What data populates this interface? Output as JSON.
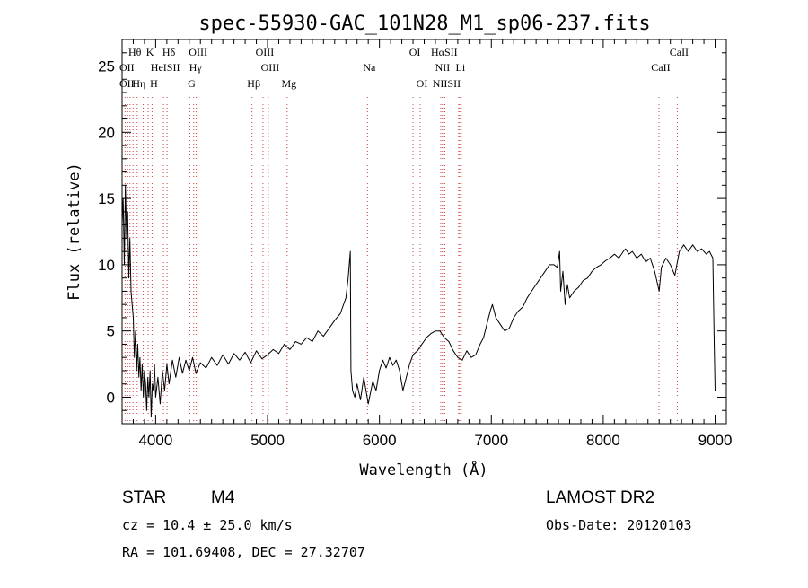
{
  "chart_data": {
    "type": "line",
    "title": "spec-55930-GAC_101N28_M1_sp06-237.fits",
    "xlabel": "Wavelength (Å)",
    "ylabel": "Flux (relative)",
    "xlim": [
      3700,
      9100
    ],
    "ylim": [
      -2,
      27
    ],
    "xticks": [
      4000,
      5000,
      6000,
      7000,
      8000,
      9000
    ],
    "yticks": [
      0,
      5,
      10,
      15,
      20,
      25
    ],
    "grid": false,
    "series": [
      {
        "values": [
          [
            3700,
            13
          ],
          [
            3710,
            15
          ],
          [
            3720,
            10
          ],
          [
            3730,
            16
          ],
          [
            3740,
            12
          ],
          [
            3750,
            14
          ],
          [
            3760,
            9
          ],
          [
            3770,
            12
          ],
          [
            3780,
            8
          ],
          [
            3790,
            7
          ],
          [
            3800,
            6
          ],
          [
            3810,
            3
          ],
          [
            3820,
            5
          ],
          [
            3830,
            2
          ],
          [
            3840,
            4
          ],
          [
            3850,
            1.5
          ],
          [
            3860,
            3
          ],
          [
            3870,
            0.5
          ],
          [
            3880,
            2.5
          ],
          [
            3890,
            0
          ],
          [
            3900,
            2
          ],
          [
            3910,
            1
          ],
          [
            3920,
            -1
          ],
          [
            3930,
            1.5
          ],
          [
            3940,
            0
          ],
          [
            3950,
            2
          ],
          [
            3960,
            -1.5
          ],
          [
            3970,
            1
          ],
          [
            3980,
            0.5
          ],
          [
            3990,
            2.5
          ],
          [
            4000,
            0
          ],
          [
            4020,
            1.5
          ],
          [
            4040,
            -0.5
          ],
          [
            4060,
            2
          ],
          [
            4080,
            0.5
          ],
          [
            4100,
            2.5
          ],
          [
            4120,
            1
          ],
          [
            4150,
            2.8
          ],
          [
            4180,
            1.5
          ],
          [
            4210,
            3
          ],
          [
            4240,
            1.8
          ],
          [
            4270,
            2.8
          ],
          [
            4300,
            2
          ],
          [
            4330,
            3
          ],
          [
            4360,
            1.8
          ],
          [
            4400,
            2.6
          ],
          [
            4450,
            2.2
          ],
          [
            4500,
            3
          ],
          [
            4550,
            2.4
          ],
          [
            4600,
            3.2
          ],
          [
            4650,
            2.5
          ],
          [
            4700,
            3.3
          ],
          [
            4750,
            2.8
          ],
          [
            4800,
            3.4
          ],
          [
            4850,
            2.6
          ],
          [
            4900,
            3.5
          ],
          [
            4950,
            2.9
          ],
          [
            5000,
            3.2
          ],
          [
            5050,
            3.6
          ],
          [
            5100,
            3.3
          ],
          [
            5150,
            4
          ],
          [
            5200,
            3.6
          ],
          [
            5250,
            4.2
          ],
          [
            5300,
            4
          ],
          [
            5350,
            4.5
          ],
          [
            5400,
            4.2
          ],
          [
            5450,
            5
          ],
          [
            5500,
            4.6
          ],
          [
            5550,
            5.2
          ],
          [
            5600,
            5.8
          ],
          [
            5650,
            6.3
          ],
          [
            5700,
            7.5
          ],
          [
            5720,
            9
          ],
          [
            5740,
            11
          ],
          [
            5745,
            2
          ],
          [
            5760,
            0.5
          ],
          [
            5780,
            0
          ],
          [
            5800,
            1
          ],
          [
            5830,
            -0.2
          ],
          [
            5860,
            1.5
          ],
          [
            5900,
            -0.5
          ],
          [
            5940,
            1.2
          ],
          [
            5970,
            0.5
          ],
          [
            6000,
            2
          ],
          [
            6030,
            2.8
          ],
          [
            6060,
            2.2
          ],
          [
            6090,
            3
          ],
          [
            6120,
            2.4
          ],
          [
            6150,
            2.8
          ],
          [
            6180,
            2
          ],
          [
            6210,
            0.5
          ],
          [
            6240,
            1.5
          ],
          [
            6270,
            2.5
          ],
          [
            6300,
            3.2
          ],
          [
            6340,
            3.5
          ],
          [
            6380,
            4
          ],
          [
            6420,
            4.5
          ],
          [
            6460,
            4.8
          ],
          [
            6500,
            5
          ],
          [
            6540,
            5
          ],
          [
            6580,
            4.5
          ],
          [
            6620,
            4.2
          ],
          [
            6660,
            3.5
          ],
          [
            6700,
            3
          ],
          [
            6740,
            2.8
          ],
          [
            6780,
            3.5
          ],
          [
            6820,
            3
          ],
          [
            6860,
            3.2
          ],
          [
            6900,
            4
          ],
          [
            6930,
            4.5
          ],
          [
            6960,
            5.5
          ],
          [
            6990,
            6.5
          ],
          [
            7010,
            7
          ],
          [
            7040,
            6
          ],
          [
            7080,
            5.5
          ],
          [
            7120,
            5
          ],
          [
            7160,
            5.2
          ],
          [
            7200,
            6
          ],
          [
            7240,
            6.5
          ],
          [
            7280,
            6.8
          ],
          [
            7320,
            7.5
          ],
          [
            7360,
            8
          ],
          [
            7400,
            8.5
          ],
          [
            7440,
            9
          ],
          [
            7480,
            9.5
          ],
          [
            7520,
            10
          ],
          [
            7560,
            10
          ],
          [
            7590,
            9.8
          ],
          [
            7610,
            11
          ],
          [
            7620,
            8
          ],
          [
            7640,
            9.5
          ],
          [
            7660,
            7
          ],
          [
            7680,
            8.5
          ],
          [
            7700,
            7.5
          ],
          [
            7740,
            8
          ],
          [
            7780,
            8.3
          ],
          [
            7820,
            8.8
          ],
          [
            7860,
            9
          ],
          [
            7900,
            9.5
          ],
          [
            7940,
            9.8
          ],
          [
            7980,
            10
          ],
          [
            8020,
            10.3
          ],
          [
            8060,
            10.5
          ],
          [
            8100,
            10.8
          ],
          [
            8140,
            10.5
          ],
          [
            8180,
            11
          ],
          [
            8200,
            11.2
          ],
          [
            8230,
            10.8
          ],
          [
            8260,
            11
          ],
          [
            8300,
            10.5
          ],
          [
            8340,
            10.8
          ],
          [
            8380,
            10.2
          ],
          [
            8420,
            10.5
          ],
          [
            8460,
            9.5
          ],
          [
            8500,
            8
          ],
          [
            8520,
            9.8
          ],
          [
            8560,
            10.5
          ],
          [
            8600,
            10
          ],
          [
            8640,
            9.2
          ],
          [
            8680,
            11
          ],
          [
            8720,
            11.5
          ],
          [
            8760,
            11
          ],
          [
            8800,
            11.5
          ],
          [
            8840,
            11
          ],
          [
            8880,
            11.2
          ],
          [
            8920,
            10.8
          ],
          [
            8950,
            11
          ],
          [
            8980,
            10.5
          ],
          [
            8990,
            5
          ],
          [
            9000,
            0.5
          ]
        ]
      }
    ],
    "line_labels": [
      {
        "name": "Hθ",
        "wave": 3798,
        "row": 0
      },
      {
        "name": "K",
        "wave": 3933,
        "row": 0
      },
      {
        "name": "Hδ",
        "wave": 4102,
        "row": 0
      },
      {
        "name": "OIII",
        "wave": 4363,
        "row": 0
      },
      {
        "name": "OIII",
        "wave": 4959,
        "row": 0
      },
      {
        "name": "OI",
        "wave": 6300,
        "row": 0
      },
      {
        "name": "HαSII",
        "wave": 6563,
        "row": 0
      },
      {
        "name": "CaII",
        "wave": 8662,
        "row": 0
      },
      {
        "name": "OII",
        "wave": 3727,
        "row": 1
      },
      {
        "name": "HeISII",
        "wave": 4070,
        "row": 1
      },
      {
        "name": "Hγ",
        "wave": 4340,
        "row": 1
      },
      {
        "name": "OIII",
        "wave": 5007,
        "row": 1
      },
      {
        "name": "Na",
        "wave": 5893,
        "row": 1
      },
      {
        "name": "NII",
        "wave": 6548,
        "row": 1
      },
      {
        "name": "Li",
        "wave": 6708,
        "row": 1
      },
      {
        "name": "CaII",
        "wave": 8498,
        "row": 1
      },
      {
        "name": "OII",
        "wave": 3727,
        "row": 2
      },
      {
        "name": "Hη",
        "wave": 3835,
        "row": 2
      },
      {
        "name": "H",
        "wave": 3968,
        "row": 2
      },
      {
        "name": "G",
        "wave": 4305,
        "row": 2
      },
      {
        "name": "Hβ",
        "wave": 4861,
        "row": 2
      },
      {
        "name": "Mg",
        "wave": 5175,
        "row": 2
      },
      {
        "name": "OI",
        "wave": 6364,
        "row": 2
      },
      {
        "name": "NIISII",
        "wave": 6584,
        "row": 2
      }
    ],
    "line_markers": [
      3727,
      3750,
      3771,
      3798,
      3835,
      3889,
      3933,
      3968,
      4070,
      4102,
      4305,
      4340,
      4363,
      4861,
      4959,
      5007,
      5175,
      5893,
      6300,
      6364,
      6548,
      6563,
      6584,
      6708,
      6717,
      6731,
      8498,
      8662
    ]
  },
  "info": {
    "object_type": "STAR",
    "subclass": "M4",
    "survey": "LAMOST DR2",
    "cz": "cz = 10.4 ± 25.0 km/s",
    "obs_date": "Obs-Date: 20120103",
    "coords": "RA = 101.69408, DEC =  27.32707"
  },
  "colors": {
    "spectrum": "#000000",
    "markers": "#d04040",
    "axes": "#000000"
  }
}
